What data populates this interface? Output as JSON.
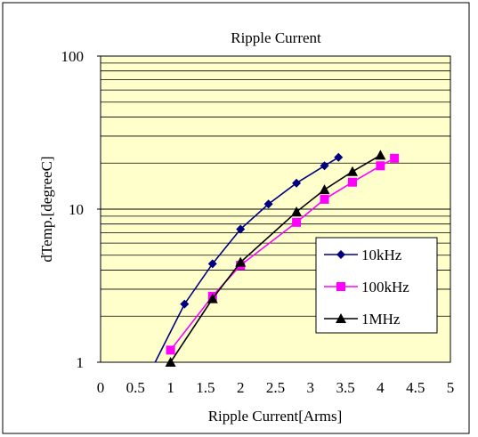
{
  "chart_data": {
    "type": "line",
    "title": "Ripple Current",
    "xlabel": "Ripple Current[Arms]",
    "ylabel": "dTemp.[degreeC]",
    "xlim": [
      0,
      5
    ],
    "ylim": [
      1,
      100
    ],
    "yscale": "log",
    "x_ticks": [
      "0",
      "0.5",
      "1",
      "1.5",
      "2",
      "2.5",
      "3",
      "3.5",
      "4",
      "4.5",
      "5"
    ],
    "y_ticks": [
      "1",
      "10",
      "100"
    ],
    "grid": true,
    "legend_position": "right",
    "plot_background": "#ffffcc",
    "series": [
      {
        "name": "10kHz",
        "color": "#000080",
        "marker": "diamond",
        "points": [
          [
            0.78,
            1.0
          ],
          [
            1.2,
            2.4
          ],
          [
            1.6,
            4.4
          ],
          [
            2.0,
            7.4
          ],
          [
            2.4,
            10.8
          ],
          [
            2.8,
            14.8
          ],
          [
            3.2,
            19.2
          ],
          [
            3.4,
            21.8
          ]
        ]
      },
      {
        "name": "100kHz",
        "color": "#ff00ff",
        "marker": "square",
        "points": [
          [
            1.0,
            1.2
          ],
          [
            1.6,
            2.7
          ],
          [
            2.0,
            4.3
          ],
          [
            2.8,
            8.2
          ],
          [
            3.2,
            11.6
          ],
          [
            3.6,
            15.0
          ],
          [
            4.0,
            19.2
          ],
          [
            4.2,
            21.5
          ]
        ]
      },
      {
        "name": "1MHz",
        "color": "#000000",
        "marker": "triangle",
        "points": [
          [
            1.0,
            1.0
          ],
          [
            1.6,
            2.6
          ],
          [
            2.0,
            4.5
          ],
          [
            2.8,
            9.6
          ],
          [
            3.2,
            13.4
          ],
          [
            3.6,
            17.6
          ],
          [
            4.0,
            22.5
          ]
        ]
      }
    ]
  }
}
